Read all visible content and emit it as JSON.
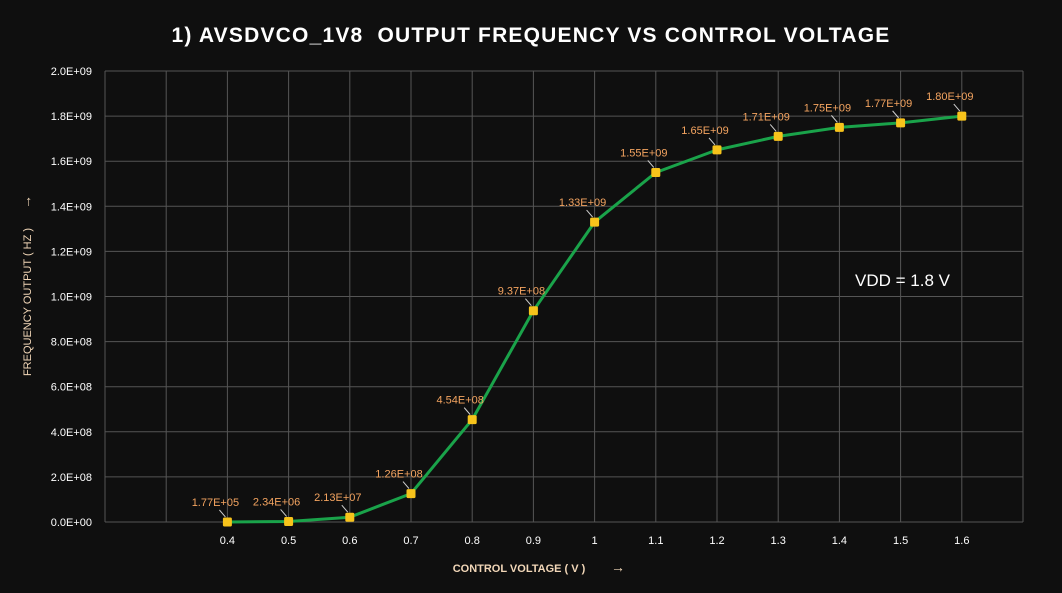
{
  "colors": {
    "background": "#0f0f0f",
    "grid": "#555555",
    "line": "#1aa34a",
    "marker": "#f7c31b",
    "data_label": "#f4a460",
    "axis_title": "#f2d7b8",
    "tick": "#ffffff",
    "title": "#ffffff"
  },
  "chart_data": {
    "type": "line",
    "title": "1) AVSDVCO_1V8  OUTPUT FREQUENCY VS CONTROL VOLTAGE",
    "xlabel": "CONTROL VOLTAGE ( V )",
    "ylabel": "FREQUENCY OUTPUT ( HZ )",
    "xlabel_arrow": "→",
    "ylabel_arrow": "→",
    "categories": [
      "0.4",
      "0.5",
      "0.6",
      "0.7",
      "0.8",
      "0.9",
      "1",
      "1.1",
      "1.2",
      "1.3",
      "1.4",
      "1.5",
      "1.6"
    ],
    "x": [
      0.4,
      0.5,
      0.6,
      0.7,
      0.8,
      0.9,
      1.0,
      1.1,
      1.2,
      1.3,
      1.4,
      1.5,
      1.6
    ],
    "values": [
      177000,
      2340000,
      21300000,
      126000000,
      454000000,
      937000000,
      1330000000,
      1550000000,
      1650000000,
      1710000000,
      1750000000,
      1770000000,
      1800000000
    ],
    "data_labels": [
      "1.77E+05",
      "2.34E+06",
      "2.13E+07",
      "1.26E+08",
      "4.54E+08",
      "9.37E+08",
      "1.33E+09",
      "1.55E+09",
      "1.65E+09",
      "1.71E+09",
      "1.75E+09",
      "1.77E+09",
      "1.80E+09"
    ],
    "xlim": [
      0.2,
      1.7
    ],
    "ylim": [
      0,
      2000000000
    ],
    "yticks": [
      0,
      200000000,
      400000000,
      600000000,
      800000000,
      1000000000,
      1200000000,
      1400000000,
      1600000000,
      1800000000,
      2000000000
    ],
    "ytick_labels": [
      "0.0E+00",
      "2.0E+08",
      "4.0E+08",
      "6.0E+08",
      "8.0E+08",
      "1.0E+09",
      "1.2E+09",
      "1.4E+09",
      "1.6E+09",
      "1.8E+09",
      "2.0E+09"
    ],
    "grid": true,
    "annotation": "VDD = 1.8 V"
  }
}
